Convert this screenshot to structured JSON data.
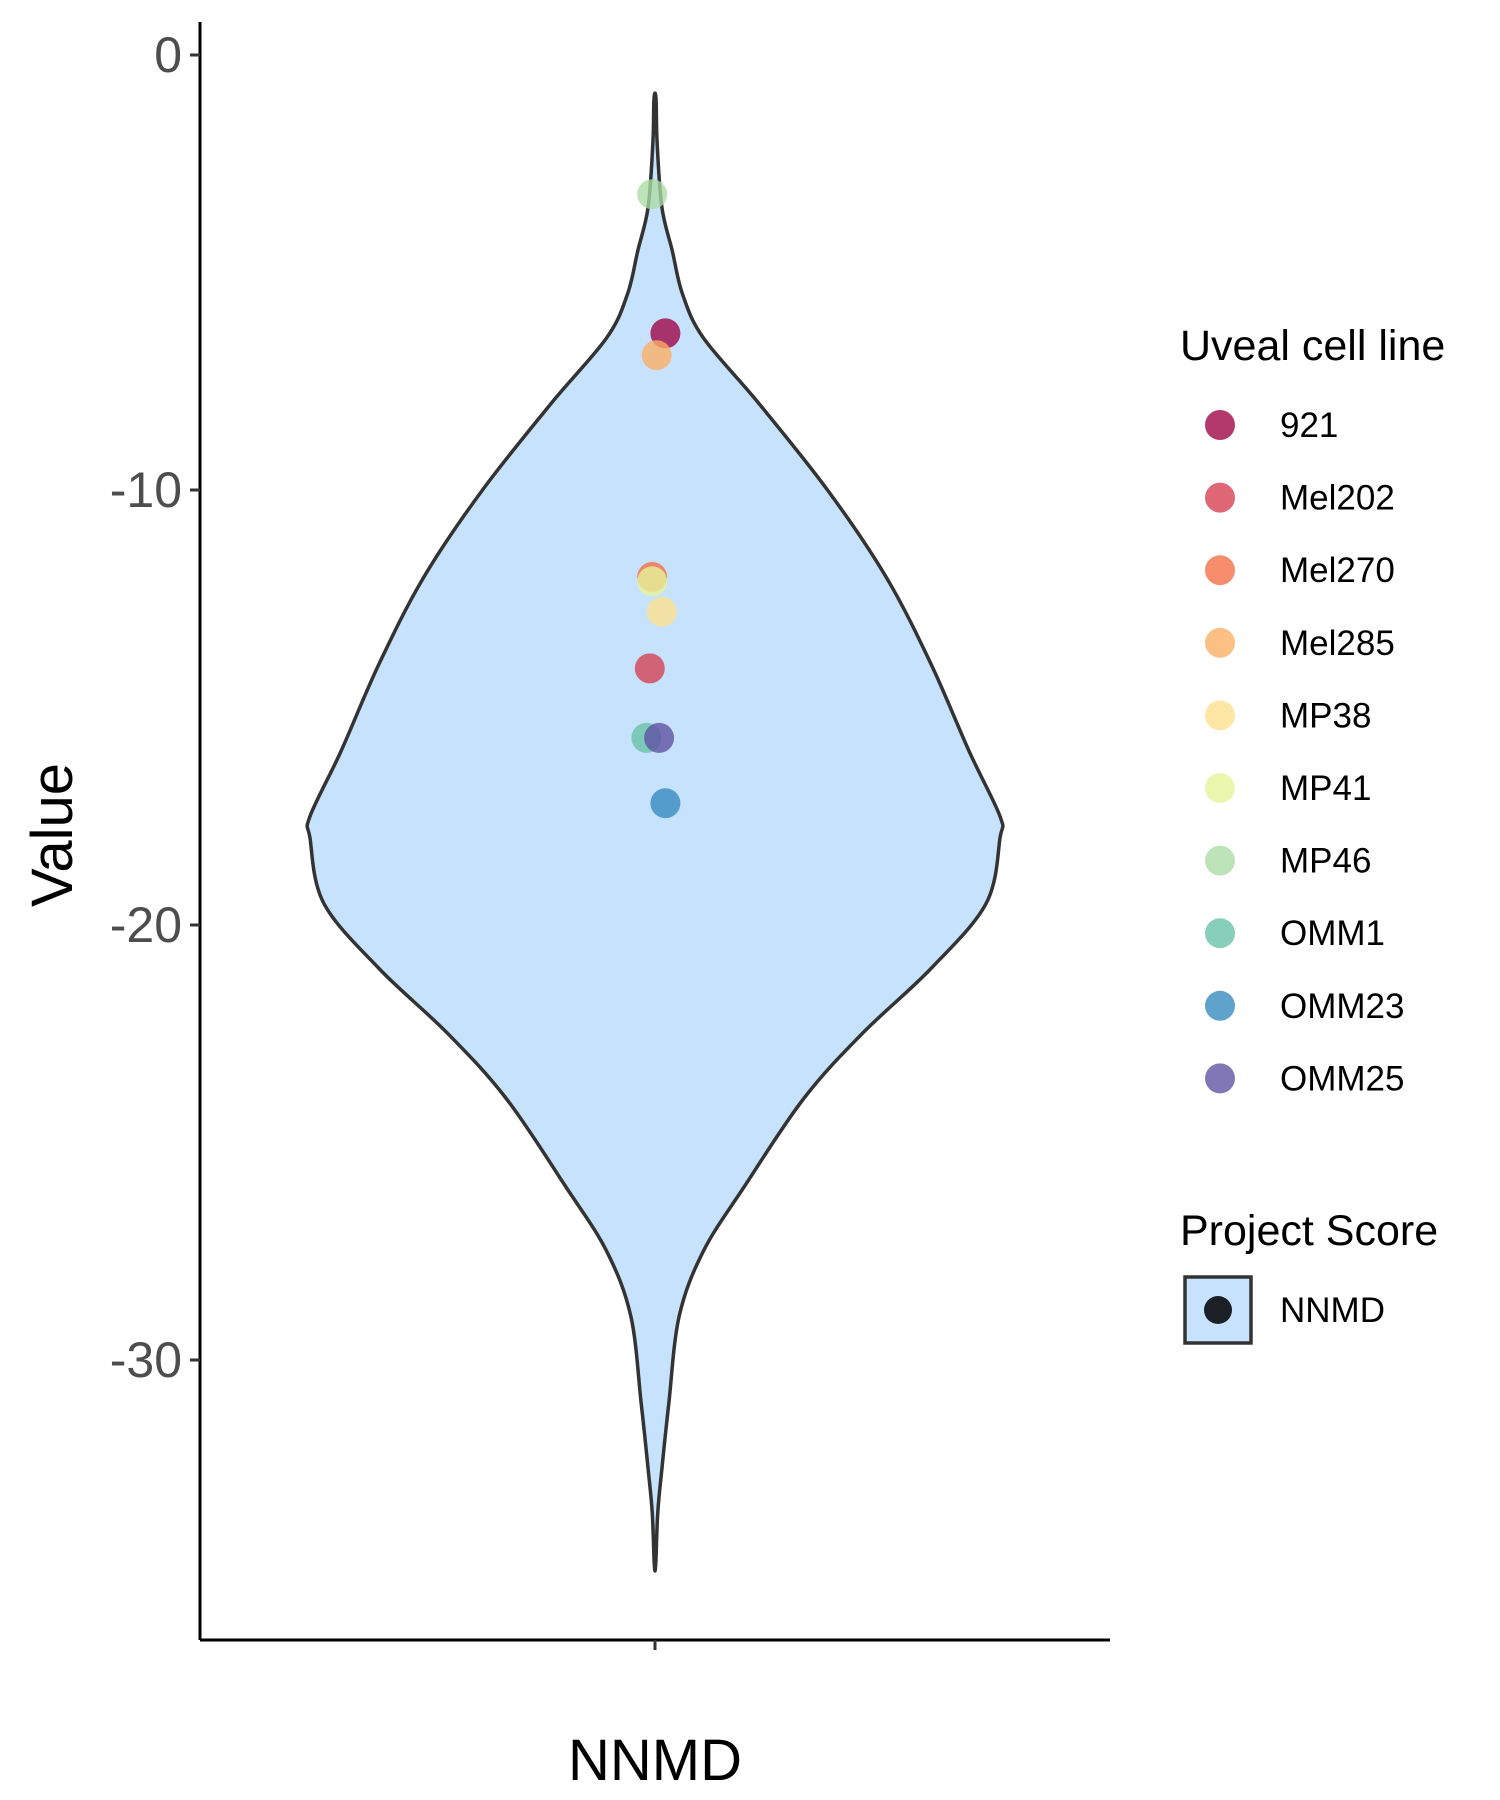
{
  "chart_data": {
    "type": "violin",
    "category": "NNMD",
    "xlabel": "NNMD",
    "ylabel": "Value",
    "ylim": [
      -36.5,
      0.7
    ],
    "yticks": [
      0,
      -10,
      -20,
      -30
    ],
    "ytick_labels": [
      "0",
      "-10",
      "-20",
      "-30"
    ],
    "violin_range": [
      -34.7,
      -1.0
    ],
    "violin_fill": "#c6e2fc",
    "violin_outline": "#333333",
    "violin_density": [
      {
        "y": -1.0,
        "w": 0.003
      },
      {
        "y": -2.0,
        "w": 0.006
      },
      {
        "y": -3.5,
        "w": 0.02
      },
      {
        "y": -4.5,
        "w": 0.05
      },
      {
        "y": -5.5,
        "w": 0.08
      },
      {
        "y": -6.5,
        "w": 0.14
      },
      {
        "y": -8.0,
        "w": 0.3
      },
      {
        "y": -10.0,
        "w": 0.5
      },
      {
        "y": -12.0,
        "w": 0.67
      },
      {
        "y": -14.0,
        "w": 0.8
      },
      {
        "y": -16.0,
        "w": 0.91
      },
      {
        "y": -17.5,
        "w": 1.0
      },
      {
        "y": -18.0,
        "w": 1.0
      },
      {
        "y": -19.5,
        "w": 0.96
      },
      {
        "y": -21.0,
        "w": 0.8
      },
      {
        "y": -22.5,
        "w": 0.6
      },
      {
        "y": -24.0,
        "w": 0.43
      },
      {
        "y": -26.0,
        "w": 0.26
      },
      {
        "y": -27.5,
        "w": 0.14
      },
      {
        "y": -29.0,
        "w": 0.07
      },
      {
        "y": -31.0,
        "w": 0.04
      },
      {
        "y": -32.5,
        "w": 0.02
      },
      {
        "y": -33.5,
        "w": 0.008
      },
      {
        "y": -34.7,
        "w": 0.002
      }
    ],
    "points": [
      {
        "name": "921",
        "y": -6.4,
        "jitter": 0.03,
        "color": "#9e0142"
      },
      {
        "name": "Mel202",
        "y": -14.1,
        "jitter": -0.015,
        "color": "#d53e4f"
      },
      {
        "name": "Mel270",
        "y": -12.0,
        "jitter": -0.008,
        "color": "#f46d43"
      },
      {
        "name": "Mel285",
        "y": -6.9,
        "jitter": 0.005,
        "color": "#fdae61"
      },
      {
        "name": "MP38",
        "y": -12.8,
        "jitter": 0.02,
        "color": "#fee08b"
      },
      {
        "name": "MP41",
        "y": -12.1,
        "jitter": -0.008,
        "color": "#e6f598"
      },
      {
        "name": "MP46",
        "y": -3.2,
        "jitter": -0.008,
        "color": "#abdda4"
      },
      {
        "name": "OMM1",
        "y": -15.7,
        "jitter": -0.025,
        "color": "#66c2a5"
      },
      {
        "name": "OMM23",
        "y": -17.2,
        "jitter": 0.03,
        "color": "#3288bd"
      },
      {
        "name": "OMM25",
        "y": -15.7,
        "jitter": 0.012,
        "color": "#5e4fa2"
      }
    ],
    "legend": {
      "position": "right",
      "color_title": "Uveal cell line",
      "color_items": [
        "921",
        "Mel202",
        "Mel270",
        "Mel285",
        "MP38",
        "MP41",
        "MP46",
        "OMM1",
        "OMM23",
        "OMM25"
      ],
      "fill_title": "Project Score",
      "fill_items": [
        "NNMD"
      ],
      "fill_key_point_color": "#1b1f26"
    },
    "grid": false
  }
}
